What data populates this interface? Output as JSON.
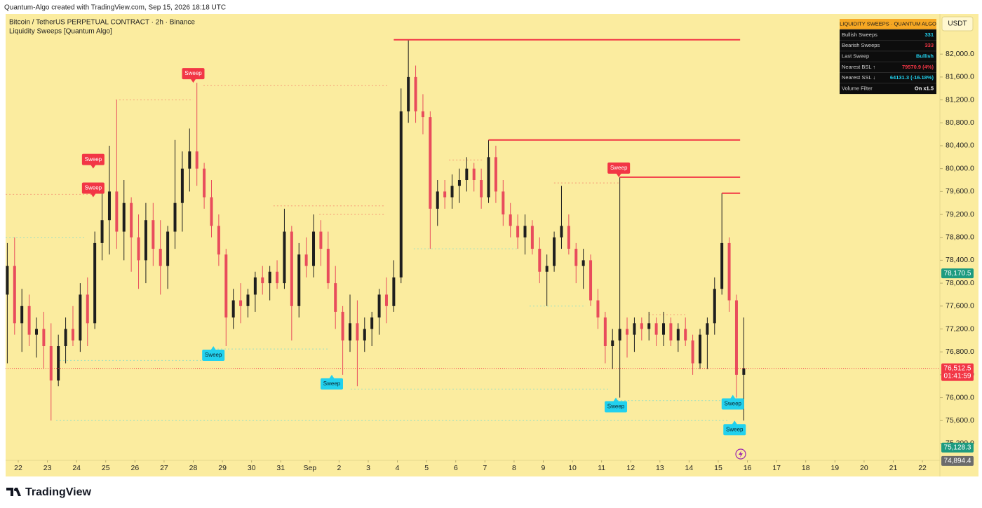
{
  "header": {
    "credit": "Quantum-Algo created with TradingView.com, Sep 15, 2026 18:18 UTC"
  },
  "footer": {
    "brand": "TradingView"
  },
  "panel": {
    "title": "LIQUIDITY SWEEPS · QUANTUM ALGO",
    "rows": [
      {
        "label": "Bullish Sweeps",
        "value": "331",
        "color": "#22d1ee"
      },
      {
        "label": "Bearish Sweeps",
        "value": "333",
        "color": "#f23645"
      },
      {
        "label": "Last Sweep",
        "value": "Bullish",
        "color": "#22d1ee"
      },
      {
        "label": "Nearest BSL ↑",
        "value": "79570.9 (4%)",
        "color": "#f23645"
      },
      {
        "label": "Nearest SSL ↓",
        "value": "64131.3 (-16.18%)",
        "color": "#22d1ee"
      },
      {
        "label": "Volume Filter",
        "value": "On x1.5",
        "color": "#ffffff"
      }
    ]
  },
  "chart_data": {
    "type": "candlestick",
    "title": "Bitcoin / TetherUS PERPETUAL CONTRACT · 2h · Binance",
    "subtitle": "Liquidity Sweeps [Quantum Algo]",
    "currency": "USDT",
    "up_color": "#1e1e1e",
    "down_color": "#e84c5c",
    "bull_color": "#22d1ee",
    "bear_color": "#f23645",
    "grid": false,
    "xlim": [
      -0.433,
      31.6
    ],
    "xticks": [
      {
        "value": 0,
        "label": "22"
      },
      {
        "value": 1,
        "label": "23"
      },
      {
        "value": 2,
        "label": "24"
      },
      {
        "value": 3,
        "label": "25"
      },
      {
        "value": 4,
        "label": "26"
      },
      {
        "value": 5,
        "label": "27"
      },
      {
        "value": 6,
        "label": "28"
      },
      {
        "value": 7,
        "label": "29"
      },
      {
        "value": 8,
        "label": "30"
      },
      {
        "value": 9,
        "label": "31"
      },
      {
        "value": 10,
        "label": "Sep"
      },
      {
        "value": 11,
        "label": "2"
      },
      {
        "value": 12,
        "label": "3"
      },
      {
        "value": 13,
        "label": "4"
      },
      {
        "value": 14,
        "label": "5"
      },
      {
        "value": 15,
        "label": "6"
      },
      {
        "value": 16,
        "label": "7"
      },
      {
        "value": 17,
        "label": "8"
      },
      {
        "value": 18,
        "label": "9"
      },
      {
        "value": 19,
        "label": "10"
      },
      {
        "value": 20,
        "label": "11"
      },
      {
        "value": 21,
        "label": "12"
      },
      {
        "value": 22,
        "label": "13"
      },
      {
        "value": 23,
        "label": "14"
      },
      {
        "value": 24,
        "label": "15"
      },
      {
        "value": 25,
        "label": "16"
      },
      {
        "value": 26,
        "label": "17"
      },
      {
        "value": 27,
        "label": "18"
      },
      {
        "value": 28,
        "label": "19"
      },
      {
        "value": 29,
        "label": "20"
      },
      {
        "value": 30,
        "label": "21"
      },
      {
        "value": 31,
        "label": "22"
      }
    ],
    "ylim": [
      74930,
      82700
    ],
    "yticks": [
      {
        "value": 75200,
        "label": "75,200.0"
      },
      {
        "value": 75600,
        "label": "75,600.0"
      },
      {
        "value": 76000,
        "label": "76,000.0"
      },
      {
        "value": 76400,
        "label": "76,400.0"
      },
      {
        "value": 76800,
        "label": "76,800.0"
      },
      {
        "value": 77200,
        "label": "77,200.0"
      },
      {
        "value": 77600,
        "label": "77,600.0"
      },
      {
        "value": 78000,
        "label": "78,000.0"
      },
      {
        "value": 78400,
        "label": "78,400.0"
      },
      {
        "value": 78800,
        "label": "78,800.0"
      },
      {
        "value": 79200,
        "label": "79,200.0"
      },
      {
        "value": 79600,
        "label": "79,600.0"
      },
      {
        "value": 80000,
        "label": "80,000.0"
      },
      {
        "value": 80400,
        "label": "80,400.0"
      },
      {
        "value": 80800,
        "label": "80,800.0"
      },
      {
        "value": 81200,
        "label": "81,200.0"
      },
      {
        "value": 81600,
        "label": "81,600.0"
      },
      {
        "value": 82000,
        "label": "82,000.0"
      }
    ],
    "x": [
      -0.375,
      -0.125,
      0.125,
      0.375,
      0.625,
      0.875,
      1.125,
      1.375,
      1.625,
      1.875,
      2.125,
      2.375,
      2.625,
      2.875,
      3.125,
      3.375,
      3.625,
      3.875,
      4.125,
      4.375,
      4.625,
      4.875,
      5.125,
      5.375,
      5.625,
      5.875,
      6.125,
      6.375,
      6.625,
      6.875,
      7.125,
      7.375,
      7.625,
      7.875,
      8.125,
      8.375,
      8.625,
      8.875,
      9.125,
      9.375,
      9.625,
      9.875,
      10.125,
      10.375,
      10.625,
      10.875,
      11.125,
      11.375,
      11.625,
      11.875,
      12.125,
      12.375,
      12.625,
      12.875,
      13.125,
      13.375,
      13.625,
      13.875,
      14.125,
      14.375,
      14.625,
      14.875,
      15.125,
      15.375,
      15.625,
      15.875,
      16.125,
      16.375,
      16.625,
      16.875,
      17.125,
      17.375,
      17.625,
      17.875,
      18.125,
      18.375,
      18.625,
      18.875,
      19.125,
      19.375,
      19.625,
      19.875,
      20.125,
      20.375,
      20.625,
      20.875,
      21.125,
      21.375,
      21.625,
      21.875,
      22.125,
      22.375,
      22.625,
      22.875,
      23.125,
      23.375,
      23.625,
      23.875,
      24.125,
      24.375,
      24.625,
      24.875
    ],
    "open": [
      77800,
      78300,
      77300,
      77600,
      77100,
      77200,
      76900,
      76300,
      76900,
      77200,
      77000,
      77800,
      77300,
      78700,
      79100,
      79600,
      78900,
      79400,
      78800,
      78400,
      79100,
      78600,
      78300,
      78900,
      79400,
      80000,
      80300,
      80000,
      79500,
      79000,
      78500,
      77400,
      77700,
      77600,
      77800,
      78100,
      78000,
      78200,
      78000,
      78900,
      77600,
      78500,
      78300,
      78900,
      78600,
      78000,
      77500,
      77000,
      77300,
      77000,
      77200,
      77400,
      77800,
      77600,
      78100,
      81000,
      81600,
      81000,
      80900,
      79300,
      79600,
      79500,
      79700,
      79800,
      80000,
      79800,
      79500,
      80200,
      79600,
      79200,
      79000,
      78800,
      79000,
      78600,
      78200,
      78300,
      78800,
      79000,
      78600,
      78300,
      78400,
      77700,
      77400,
      76900,
      77000,
      77200,
      77100,
      77300,
      77200,
      77300,
      77100,
      77300,
      77000,
      77200,
      77000,
      76600,
      77100,
      77300,
      77900,
      78700,
      77700,
      76400
    ],
    "high": [
      78700,
      78800,
      77900,
      77800,
      77400,
      77500,
      77300,
      77100,
      77400,
      77600,
      78000,
      78100,
      78900,
      79600,
      80400,
      81200,
      79800,
      79500,
      79200,
      79400,
      79400,
      79100,
      79000,
      80500,
      80300,
      80700,
      81500,
      80100,
      79800,
      79200,
      78600,
      77900,
      78000,
      77900,
      78200,
      78300,
      78300,
      78400,
      79300,
      79000,
      78700,
      78800,
      79200,
      79100,
      78900,
      78300,
      77600,
      77800,
      77700,
      77400,
      77500,
      77900,
      78100,
      78400,
      81400,
      82250,
      81800,
      81300,
      81000,
      79800,
      79800,
      79900,
      80000,
      80200,
      80100,
      80000,
      80500,
      80400,
      79800,
      79400,
      79200,
      79200,
      79100,
      78800,
      78500,
      78900,
      79700,
      79200,
      78700,
      78600,
      78500,
      77900,
      77500,
      77200,
      79850,
      77400,
      77400,
      77400,
      77500,
      77400,
      77500,
      77400,
      77300,
      77400,
      77100,
      77200,
      77400,
      78100,
      79570.9,
      78800,
      77800,
      77400
    ],
    "low": [
      76600,
      77100,
      76800,
      76900,
      76700,
      76500,
      75600,
      76200,
      76600,
      76900,
      76800,
      76900,
      77200,
      78400,
      78500,
      78600,
      78400,
      78200,
      77900,
      78000,
      78300,
      77800,
      77900,
      78600,
      78900,
      79600,
      79700,
      79300,
      78800,
      78300,
      76900,
      77200,
      77300,
      77400,
      77500,
      77800,
      77700,
      77900,
      77900,
      77000,
      77400,
      78100,
      78100,
      78300,
      77900,
      77200,
      76400,
      76800,
      76200,
      76800,
      76900,
      77100,
      77300,
      77500,
      78000,
      80800,
      80800,
      80600,
      78600,
      79000,
      79300,
      79300,
      79400,
      79600,
      79600,
      79300,
      79400,
      79400,
      79000,
      78800,
      78600,
      78500,
      78500,
      78000,
      77600,
      78200,
      78600,
      78500,
      78000,
      77900,
      77600,
      77200,
      76600,
      76500,
      76000,
      76700,
      76800,
      77000,
      77000,
      76900,
      76900,
      76900,
      76800,
      76900,
      76400,
      76500,
      76500,
      77100,
      77800,
      77500,
      76000,
      75600
    ],
    "close": [
      78300,
      77300,
      77600,
      77100,
      77200,
      76900,
      76300,
      76900,
      77200,
      77000,
      77800,
      77300,
      78700,
      79100,
      79600,
      78900,
      79400,
      78800,
      78400,
      79100,
      78600,
      78300,
      78900,
      79400,
      80000,
      80300,
      80000,
      79500,
      79000,
      78500,
      77400,
      77700,
      77600,
      77800,
      78100,
      78000,
      78200,
      78000,
      78900,
      77600,
      78500,
      78300,
      78900,
      78600,
      78000,
      77500,
      77000,
      77300,
      77000,
      77200,
      77400,
      77800,
      77600,
      78100,
      81000,
      81600,
      81000,
      80900,
      79300,
      79600,
      79500,
      79700,
      79800,
      80000,
      79800,
      79500,
      80200,
      79600,
      79200,
      79000,
      78800,
      79000,
      78600,
      78200,
      78300,
      78800,
      79000,
      78600,
      78300,
      78400,
      77700,
      77400,
      76900,
      77000,
      77200,
      77100,
      77300,
      77200,
      77300,
      77100,
      77300,
      77000,
      77200,
      77000,
      76600,
      77100,
      77300,
      77900,
      78700,
      77700,
      76400,
      76512.5
    ],
    "levels": [
      {
        "price": 82250,
        "from": 12.875,
        "to": 24.75
      },
      {
        "price": 80500,
        "from": 16.125,
        "to": 24.75
      },
      {
        "price": 79850,
        "from": 20.625,
        "to": 24.75
      },
      {
        "price": 79570.9,
        "from": 24.125,
        "to": 24.75
      }
    ],
    "swept_levels": [
      {
        "price": 81450,
        "from": 6.35,
        "to": 12.72,
        "side": "bearish"
      },
      {
        "price": 81200,
        "from": 3.34,
        "to": 5.99,
        "side": "bearish"
      },
      {
        "price": 79550,
        "from": -0.43,
        "to": 2.5,
        "side": "bearish"
      },
      {
        "price": 79350,
        "from": 8.75,
        "to": 12.55,
        "side": "bearish"
      },
      {
        "price": 79200,
        "from": 10.32,
        "to": 12.55,
        "side": "bearish"
      },
      {
        "price": 80150,
        "from": 14.77,
        "to": 15.92,
        "side": "bearish"
      },
      {
        "price": 79750,
        "from": 18.37,
        "to": 20.59,
        "side": "bearish"
      },
      {
        "price": 77450,
        "from": 21.62,
        "to": 22.94,
        "side": "bearish"
      },
      {
        "price": 78800,
        "from": -0.43,
        "to": 2.26,
        "side": "bullish"
      },
      {
        "price": 78600,
        "from": 13.56,
        "to": 17.17,
        "side": "bullish"
      },
      {
        "price": 77600,
        "from": 17.53,
        "to": 19.46,
        "side": "bullish"
      },
      {
        "price": 76650,
        "from": 1.42,
        "to": 6.59,
        "side": "bullish"
      },
      {
        "price": 76850,
        "from": 6.71,
        "to": 10.68,
        "side": "bullish"
      },
      {
        "price": 76150,
        "from": 11.4,
        "to": 20.3,
        "side": "bullish"
      },
      {
        "price": 75600,
        "from": 1.3,
        "to": 24.39,
        "side": "bullish"
      },
      {
        "price": 75950,
        "from": 20.54,
        "to": 24.39,
        "side": "bullish"
      }
    ],
    "sweeps": [
      {
        "label": "Sweep",
        "side": "bearish",
        "x": 6.0,
        "price": 81500
      },
      {
        "label": "Sweep",
        "side": "bearish",
        "x": 2.57,
        "price": 80000
      },
      {
        "label": "Sweep",
        "side": "bearish",
        "x": 2.57,
        "price": 79500
      },
      {
        "label": "Sweep",
        "side": "bearish",
        "x": 20.59,
        "price": 79850
      },
      {
        "label": "Sweep",
        "side": "bullish",
        "x": 6.69,
        "price": 76900
      },
      {
        "label": "Sweep",
        "side": "bullish",
        "x": 10.75,
        "price": 76400
      },
      {
        "label": "Sweep",
        "side": "bullish",
        "x": 20.49,
        "price": 76000
      },
      {
        "label": "Sweep",
        "side": "bullish",
        "x": 24.5,
        "price": 76050
      },
      {
        "label": "Sweep",
        "side": "bullish",
        "x": 24.56,
        "price": 75600
      }
    ],
    "last_price": {
      "value": 76512.5,
      "label": "76,512.5",
      "countdown": "01:41:59",
      "color": "#f23645"
    },
    "price_labels": [
      {
        "value": 78170.5,
        "label": "78,170.5",
        "color": "#1e9b80"
      },
      {
        "value": 75128.3,
        "label": "75,128.3",
        "color": "#1e9b80"
      },
      {
        "value": 74894.4,
        "label": "74,894.4",
        "color": "#6b6b6b"
      }
    ]
  }
}
